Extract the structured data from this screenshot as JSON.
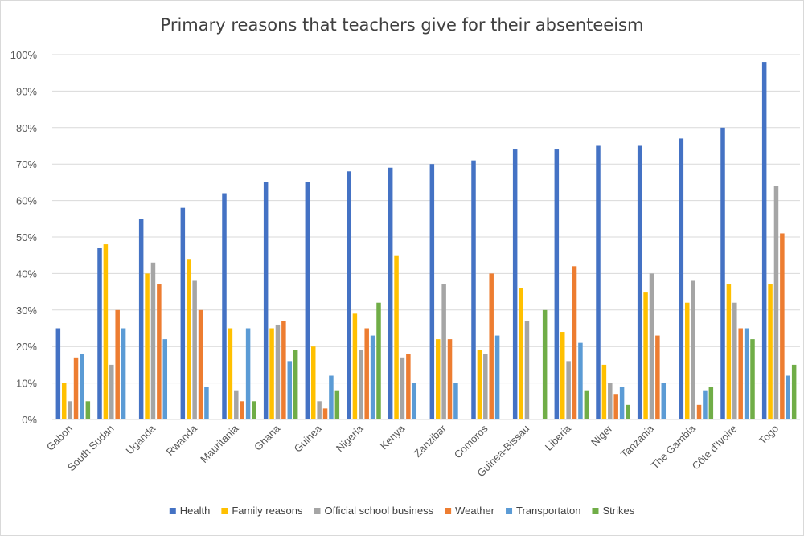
{
  "chart_data": {
    "type": "bar",
    "title": "Primary reasons that teachers give for their absenteeism",
    "xlabel": "",
    "ylabel": "",
    "ylim": [
      0,
      100
    ],
    "yticks": [
      "0%",
      "10%",
      "20%",
      "30%",
      "40%",
      "50%",
      "60%",
      "70%",
      "80%",
      "90%",
      "100%"
    ],
    "grid": true,
    "legend_position": "bottom",
    "categories": [
      "Gabon",
      "South Sudan",
      "Uganda",
      "Rwanda",
      "Mauritania",
      "Ghana",
      "Guinea",
      "Nigeria",
      "Kenya",
      "Zanzibar",
      "Comoros",
      "Guinea-Bissau",
      "Liberia",
      "Niger",
      "Tanzania",
      "The Gambia",
      "Côte d'Ivoire",
      "Togo"
    ],
    "series": [
      {
        "name": "Health",
        "color": "#4472C4",
        "values": [
          25,
          47,
          55,
          58,
          62,
          65,
          65,
          68,
          69,
          70,
          71,
          74,
          74,
          75,
          75,
          77,
          80,
          98
        ]
      },
      {
        "name": "Family reasons",
        "color": "#FFC000",
        "values": [
          10,
          48,
          40,
          44,
          25,
          25,
          20,
          29,
          45,
          22,
          19,
          36,
          24,
          15,
          35,
          32,
          37,
          37
        ]
      },
      {
        "name": "Official school business",
        "color": "#A5A5A5",
        "values": [
          5,
          15,
          43,
          38,
          8,
          26,
          5,
          19,
          17,
          37,
          18,
          27,
          16,
          10,
          40,
          38,
          32,
          64
        ]
      },
      {
        "name": "Weather",
        "color": "#ED7D31",
        "values": [
          17,
          30,
          37,
          30,
          5,
          27,
          3,
          25,
          18,
          22,
          40,
          0,
          42,
          7,
          23,
          4,
          25,
          51
        ]
      },
      {
        "name": "Transportaton",
        "color": "#5B9BD5",
        "values": [
          18,
          25,
          22,
          9,
          25,
          16,
          12,
          23,
          10,
          10,
          23,
          0,
          21,
          9,
          10,
          8,
          25,
          12
        ]
      },
      {
        "name": "Strikes",
        "color": "#70AD47",
        "values": [
          5,
          0,
          0,
          0,
          5,
          19,
          8,
          32,
          0,
          0,
          0,
          30,
          8,
          4,
          0,
          9,
          22,
          15
        ]
      }
    ]
  }
}
